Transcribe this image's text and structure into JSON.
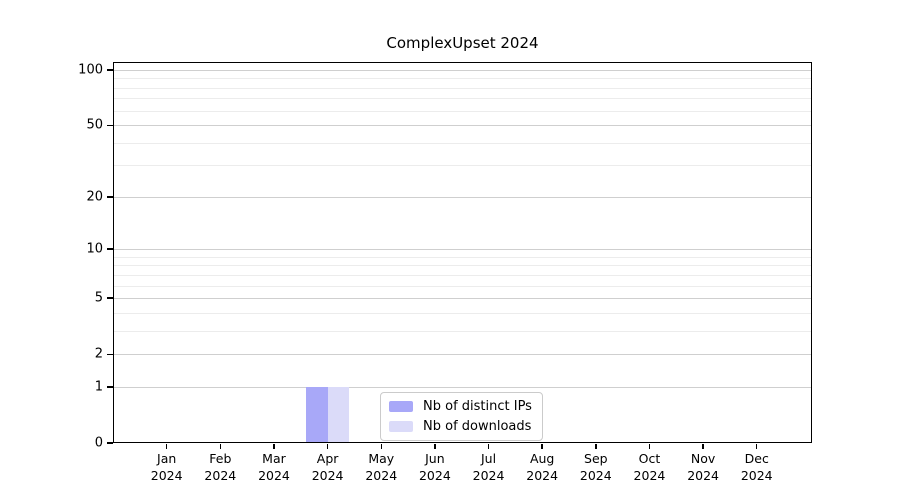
{
  "chart_data": {
    "type": "bar",
    "title": "ComplexUpset 2024",
    "x_categories": [
      [
        "Jan",
        "2024"
      ],
      [
        "Feb",
        "2024"
      ],
      [
        "Mar",
        "2024"
      ],
      [
        "Apr",
        "2024"
      ],
      [
        "May",
        "2024"
      ],
      [
        "Jun",
        "2024"
      ],
      [
        "Jul",
        "2024"
      ],
      [
        "Aug",
        "2024"
      ],
      [
        "Sep",
        "2024"
      ],
      [
        "Oct",
        "2024"
      ],
      [
        "Nov",
        "2024"
      ],
      [
        "Dec",
        "2024"
      ]
    ],
    "series": [
      {
        "name": "Nb of distinct IPs",
        "color": "#a8a8f8",
        "values": [
          0,
          0,
          0,
          1,
          0,
          0,
          0,
          0,
          0,
          0,
          0,
          0
        ]
      },
      {
        "name": "Nb of downloads",
        "color": "#dbdbf9",
        "values": [
          0,
          0,
          0,
          1,
          0,
          0,
          0,
          0,
          0,
          0,
          0,
          0
        ]
      }
    ],
    "y_axis": {
      "scale": "log1p",
      "ylim": [
        0,
        100
      ],
      "major_ticks": [
        0,
        1,
        2,
        5,
        10,
        20,
        50,
        100
      ],
      "minor_gridlines": [
        3,
        4,
        6,
        7,
        8,
        9,
        30,
        40,
        60,
        70,
        80,
        90
      ]
    },
    "grid": true,
    "legend": {
      "position": "lower center"
    },
    "style": {
      "major_grid_color": "#cfcfcf",
      "minor_grid_color": "#ececec",
      "axis_color": "#000000",
      "background": "#ffffff"
    }
  }
}
